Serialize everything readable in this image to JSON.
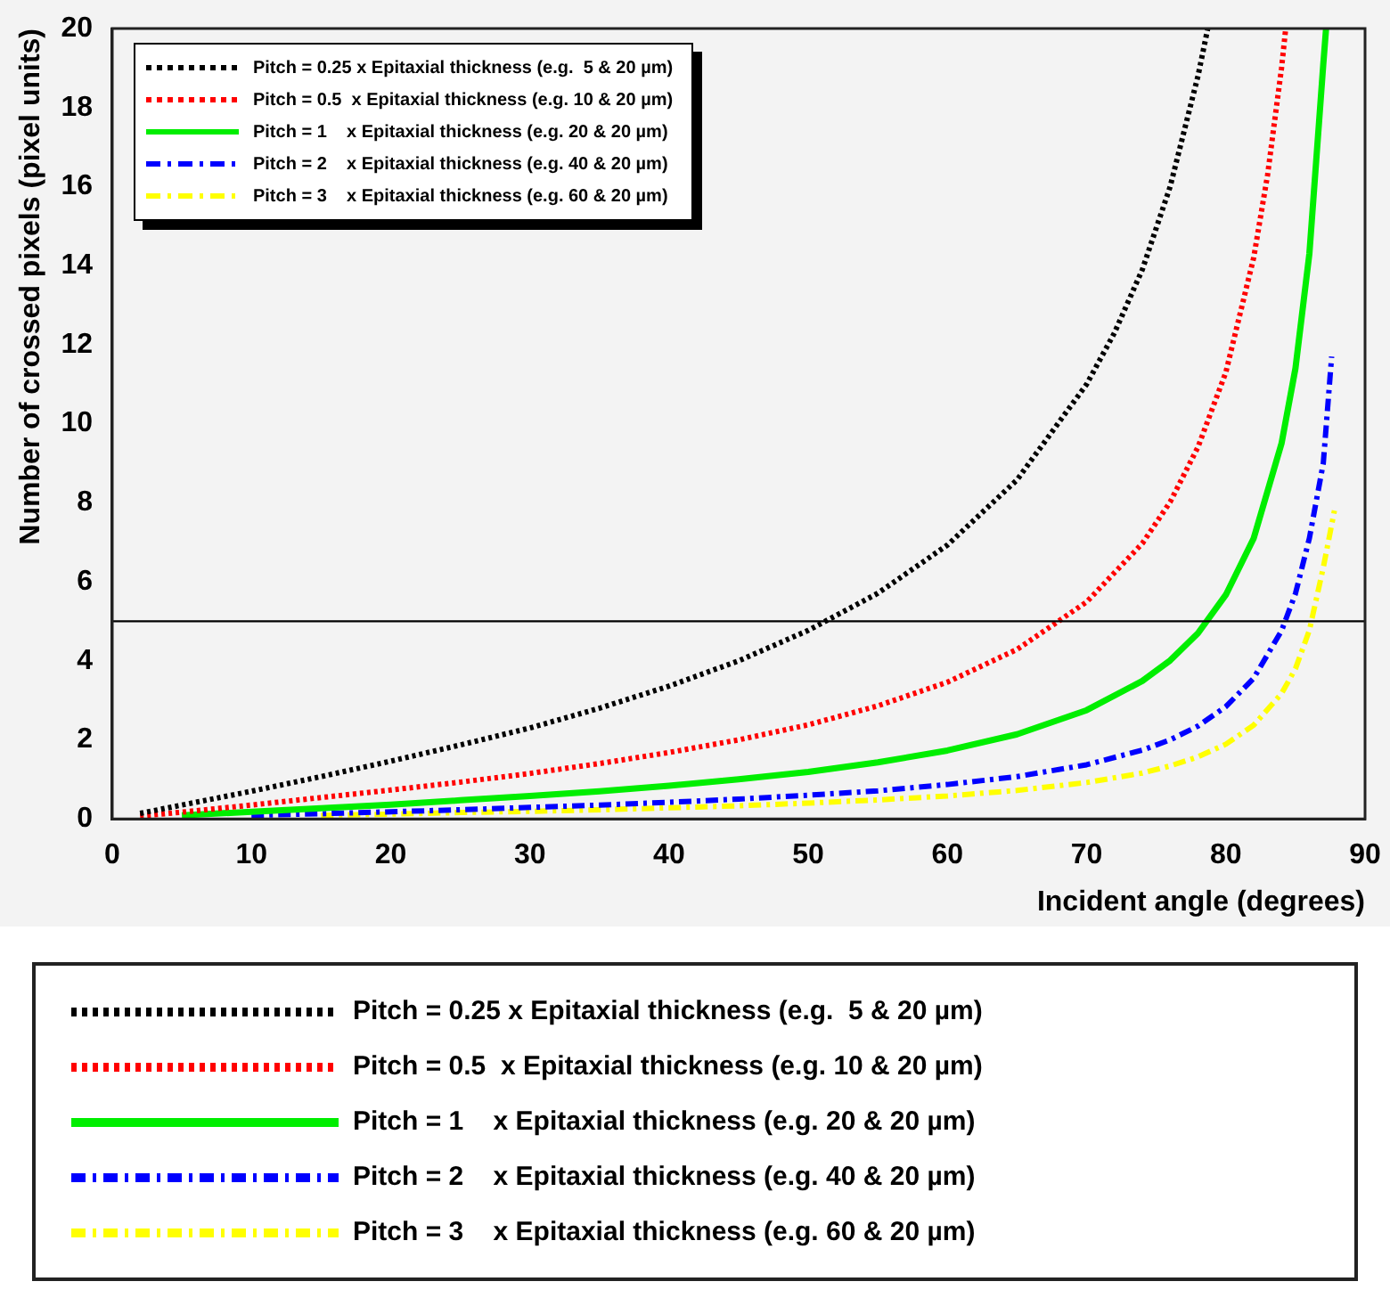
{
  "chart_data": {
    "type": "line",
    "xlabel": "Incident angle (degrees)",
    "ylabel": "Number of crossed pixels (pixel units)",
    "xlim": [
      0,
      90
    ],
    "xticks": [
      0,
      10,
      20,
      30,
      40,
      50,
      60,
      70,
      80,
      90
    ],
    "ylim": [
      0,
      20
    ],
    "yticks": [
      0,
      2,
      4,
      6,
      8,
      10,
      12,
      14,
      16,
      18,
      20
    ],
    "grid": false,
    "legend": "top left",
    "marker": "none",
    "ref_lines": [
      {
        "axis": "y",
        "value": 5,
        "color": "#000000"
      }
    ],
    "series": [
      {
        "name": "Pitch = 0.25 x Epitaxial thickness (e.g.  5 & 20 µm)",
        "color": "#000000",
        "line_style": "dotted",
        "x": [
          2,
          5,
          10,
          15,
          20,
          25,
          30,
          35,
          40,
          45,
          50,
          55,
          60,
          65,
          70,
          72,
          74,
          76,
          78,
          78.7
        ],
        "values": [
          0.14,
          0.35,
          0.7,
          1.07,
          1.46,
          1.87,
          2.3,
          2.8,
          3.36,
          4.0,
          4.77,
          5.71,
          6.93,
          8.58,
          11.0,
          12.3,
          13.9,
          16.0,
          18.8,
          20
        ]
      },
      {
        "name": "Pitch = 0.5  x Epitaxial thickness (e.g. 10 & 20 µm)",
        "color": "#ff0000",
        "line_style": "dotted",
        "x": [
          2,
          5,
          10,
          15,
          20,
          25,
          30,
          35,
          40,
          45,
          50,
          55,
          60,
          65,
          70,
          74,
          76,
          78,
          80,
          82,
          83,
          84,
          84.3
        ],
        "values": [
          0.07,
          0.17,
          0.35,
          0.54,
          0.73,
          0.93,
          1.15,
          1.4,
          1.68,
          2.0,
          2.38,
          2.86,
          3.46,
          4.29,
          5.49,
          6.97,
          8.02,
          9.41,
          11.3,
          14.2,
          16.3,
          19.0,
          20
        ]
      },
      {
        "name": "Pitch = 1    x Epitaxial thickness (e.g. 20 & 20 µm)",
        "color": "#00ee00",
        "line_style": "solid",
        "x": [
          5,
          10,
          15,
          20,
          25,
          30,
          35,
          40,
          45,
          50,
          55,
          60,
          65,
          70,
          74,
          76,
          78,
          80,
          82,
          84,
          85,
          86,
          87,
          87.2
        ],
        "values": [
          0.09,
          0.18,
          0.27,
          0.36,
          0.47,
          0.58,
          0.7,
          0.84,
          1.0,
          1.19,
          1.43,
          1.73,
          2.14,
          2.75,
          3.49,
          4.01,
          4.7,
          5.67,
          7.1,
          9.5,
          11.4,
          14.3,
          19.1,
          20
        ]
      },
      {
        "name": "Pitch = 2    x Epitaxial thickness (e.g. 40 & 20 µm)",
        "color": "#0000ff",
        "line_style": "dashed",
        "x": [
          10,
          15,
          20,
          25,
          30,
          35,
          40,
          45,
          50,
          55,
          60,
          65,
          70,
          74,
          76,
          78,
          80,
          82,
          84,
          85,
          86,
          87,
          87.6
        ],
        "values": [
          0.09,
          0.13,
          0.18,
          0.23,
          0.29,
          0.35,
          0.42,
          0.5,
          0.6,
          0.71,
          0.87,
          1.07,
          1.37,
          1.74,
          2.0,
          2.35,
          2.84,
          3.56,
          4.76,
          5.7,
          7.1,
          9.0,
          11.7
        ]
      },
      {
        "name": "Pitch = 3    x Epitaxial thickness (e.g. 60 & 20 µm)",
        "color": "#ffff00",
        "line_style": "dashed",
        "x": [
          15,
          20,
          25,
          30,
          35,
          40,
          45,
          50,
          55,
          60,
          65,
          70,
          74,
          76,
          78,
          80,
          82,
          84,
          85,
          86,
          87,
          87.8
        ],
        "values": [
          0.09,
          0.12,
          0.16,
          0.19,
          0.23,
          0.28,
          0.33,
          0.4,
          0.48,
          0.58,
          0.72,
          0.92,
          1.16,
          1.34,
          1.57,
          1.89,
          2.37,
          3.17,
          3.8,
          4.77,
          6.36,
          7.8
        ]
      }
    ]
  }
}
